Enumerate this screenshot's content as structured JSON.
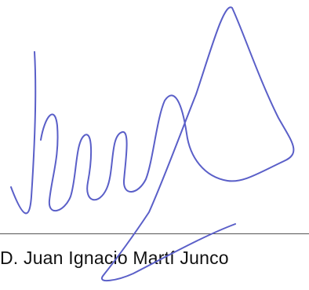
{
  "signature_block": {
    "signer_name": "D. Juan Ignacio Martí Junco",
    "ink_color": "#5a5fc8"
  }
}
